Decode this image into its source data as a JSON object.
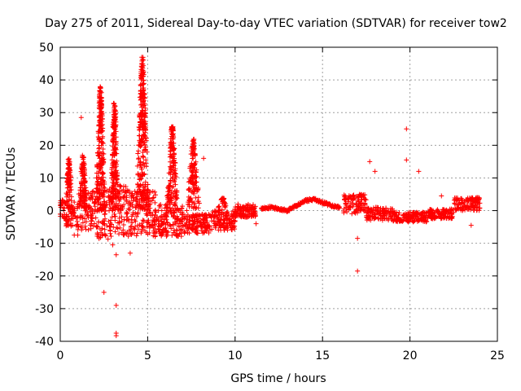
{
  "chart_data": {
    "type": "scatter",
    "title": "Day 275 of 2011, Sidereal Day-to-day VTEC variation (SDTVAR) for receiver tow2",
    "xlabel": "GPS time / hours",
    "ylabel": "SDTVAR / TECUs",
    "xlim": [
      0,
      25
    ],
    "ylim": [
      -40,
      50
    ],
    "xticks": [
      0,
      5,
      10,
      15,
      20,
      25
    ],
    "yticks": [
      -40,
      -30,
      -20,
      -10,
      0,
      10,
      20,
      30,
      40,
      50
    ],
    "grid": true,
    "marker": "+",
    "color": "#ff0000",
    "series": [
      {
        "name": "SDTVAR",
        "bands": [
          {
            "x0": 0.0,
            "x1": 0.3,
            "center": 0.5,
            "spread": 3
          },
          {
            "x0": 0.3,
            "x1": 1.0,
            "center": -1,
            "spread": 4
          },
          {
            "x0": 1.0,
            "x1": 2.0,
            "center": 0,
            "spread": 6
          },
          {
            "x0": 2.0,
            "x1": 3.0,
            "center": -1,
            "spread": 8
          },
          {
            "x0": 3.0,
            "x1": 4.0,
            "center": 0,
            "spread": 8
          },
          {
            "x0": 4.0,
            "x1": 5.5,
            "center": -1,
            "spread": 7
          },
          {
            "x0": 5.5,
            "x1": 7.0,
            "center": -3,
            "spread": 5
          },
          {
            "x0": 7.0,
            "x1": 8.5,
            "center": -4,
            "spread": 3
          },
          {
            "x0": 8.5,
            "x1": 10.0,
            "center": -3,
            "spread": 3
          },
          {
            "x0": 10.0,
            "x1": 11.2,
            "center": 0,
            "spread": 2
          }
        ],
        "peaks": [
          {
            "x": 0.5,
            "peak": 16,
            "width": 0.15
          },
          {
            "x": 1.3,
            "peak": 17,
            "width": 0.2
          },
          {
            "x": 2.3,
            "peak": 38,
            "width": 0.25
          },
          {
            "x": 3.1,
            "peak": 33,
            "width": 0.2
          },
          {
            "x": 4.7,
            "peak": 47,
            "width": 0.35
          },
          {
            "x": 6.4,
            "peak": 26,
            "width": 0.3
          },
          {
            "x": 7.6,
            "peak": 22,
            "width": 0.35
          },
          {
            "x": 9.3,
            "peak": 4,
            "width": 0.4
          }
        ],
        "quiet": [
          {
            "x": 11.5,
            "y": 0.5
          },
          {
            "x": 12.0,
            "y": 1.0
          },
          {
            "x": 12.5,
            "y": 0.5
          },
          {
            "x": 13.0,
            "y": 0.0
          },
          {
            "x": 13.5,
            "y": 1.5
          },
          {
            "x": 14.0,
            "y": 3.0
          },
          {
            "x": 14.5,
            "y": 3.5
          },
          {
            "x": 15.0,
            "y": 2.5
          },
          {
            "x": 15.5,
            "y": 1.5
          },
          {
            "x": 16.0,
            "y": 1.0
          }
        ],
        "late": [
          {
            "x0": 16.2,
            "x1": 17.5,
            "center": 2,
            "spread": 3
          },
          {
            "x0": 17.5,
            "x1": 19.0,
            "center": -1,
            "spread": 2
          },
          {
            "x0": 19.0,
            "x1": 21.0,
            "center": -2,
            "spread": 1.5
          },
          {
            "x0": 21.0,
            "x1": 22.5,
            "center": -1,
            "spread": 1.5
          },
          {
            "x0": 22.5,
            "x1": 24.0,
            "center": 2,
            "spread": 2
          }
        ],
        "outliers": [
          {
            "x": 1.2,
            "y": 28.5
          },
          {
            "x": 1.0,
            "y": -7.5
          },
          {
            "x": 0.8,
            "y": -7.5
          },
          {
            "x": 2.5,
            "y": -25
          },
          {
            "x": 3.2,
            "y": -29
          },
          {
            "x": 3.2,
            "y": -37.5
          },
          {
            "x": 3.2,
            "y": -38.3
          },
          {
            "x": 3.0,
            "y": -10.5
          },
          {
            "x": 3.2,
            "y": -13.5
          },
          {
            "x": 4.0,
            "y": -13
          },
          {
            "x": 8.2,
            "y": 16
          },
          {
            "x": 7.4,
            "y": 3
          },
          {
            "x": 17.0,
            "y": -18.5
          },
          {
            "x": 17.0,
            "y": -8.5
          },
          {
            "x": 17.7,
            "y": 15
          },
          {
            "x": 18.0,
            "y": 12
          },
          {
            "x": 19.8,
            "y": 25
          },
          {
            "x": 19.8,
            "y": 15.5
          },
          {
            "x": 20.5,
            "y": 12
          },
          {
            "x": 21.8,
            "y": 4.5
          },
          {
            "x": 23.5,
            "y": -4.5
          },
          {
            "x": 10.5,
            "y": 0
          },
          {
            "x": 11.2,
            "y": -4
          }
        ]
      }
    ]
  }
}
